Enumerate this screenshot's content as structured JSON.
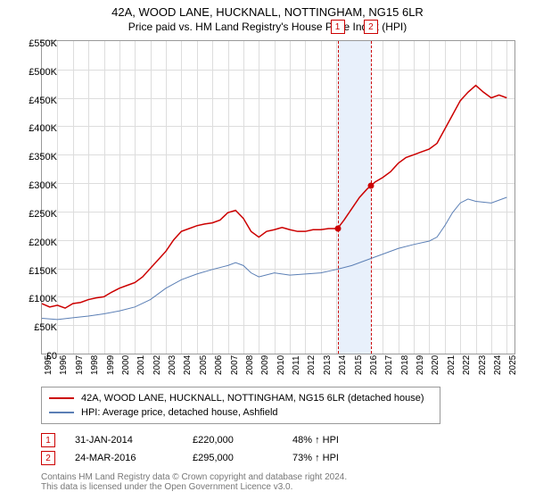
{
  "title_line1": "42A, WOOD LANE, HUCKNALL, NOTTINGHAM, NG15 6LR",
  "title_line2": "Price paid vs. HM Land Registry's House Price Index (HPI)",
  "chart": {
    "type": "line",
    "xlim": [
      1995,
      2025.5
    ],
    "ylim": [
      0,
      550
    ],
    "ytick_step": 50,
    "y_prefix": "£",
    "y_suffix": "K",
    "xticks": [
      1995,
      1996,
      1997,
      1998,
      1999,
      2000,
      2001,
      2002,
      2003,
      2004,
      2005,
      2006,
      2007,
      2008,
      2009,
      2010,
      2011,
      2012,
      2013,
      2014,
      2015,
      2016,
      2017,
      2018,
      2019,
      2020,
      2021,
      2022,
      2023,
      2024,
      2025
    ],
    "grid_color": "#ddd",
    "border_color": "#999",
    "bg_color": "#ffffff",
    "shade_color": "#e8f0fb",
    "shade_range": [
      2014.08,
      2016.23
    ],
    "series": [
      {
        "name": "42A, WOOD LANE, HUCKNALL, NOTTINGHAM, NG15 6LR (detached house)",
        "color": "#cc0000",
        "width": 1.5,
        "data": [
          [
            1995,
            88
          ],
          [
            1995.5,
            82
          ],
          [
            1996,
            85
          ],
          [
            1996.5,
            80
          ],
          [
            1997,
            88
          ],
          [
            1997.5,
            90
          ],
          [
            1998,
            95
          ],
          [
            1998.5,
            98
          ],
          [
            1999,
            100
          ],
          [
            1999.5,
            108
          ],
          [
            2000,
            115
          ],
          [
            2000.5,
            120
          ],
          [
            2001,
            125
          ],
          [
            2001.5,
            135
          ],
          [
            2002,
            150
          ],
          [
            2002.5,
            165
          ],
          [
            2003,
            180
          ],
          [
            2003.5,
            200
          ],
          [
            2004,
            215
          ],
          [
            2004.5,
            220
          ],
          [
            2005,
            225
          ],
          [
            2005.5,
            228
          ],
          [
            2006,
            230
          ],
          [
            2006.5,
            235
          ],
          [
            2007,
            248
          ],
          [
            2007.5,
            252
          ],
          [
            2008,
            238
          ],
          [
            2008.5,
            215
          ],
          [
            2009,
            205
          ],
          [
            2009.5,
            215
          ],
          [
            2010,
            218
          ],
          [
            2010.5,
            222
          ],
          [
            2011,
            218
          ],
          [
            2011.5,
            215
          ],
          [
            2012,
            215
          ],
          [
            2012.5,
            218
          ],
          [
            2013,
            218
          ],
          [
            2013.5,
            220
          ],
          [
            2014,
            220
          ],
          [
            2014.08,
            220
          ],
          [
            2014.5,
            235
          ],
          [
            2015,
            255
          ],
          [
            2015.5,
            275
          ],
          [
            2016,
            290
          ],
          [
            2016.23,
            295
          ],
          [
            2016.5,
            302
          ],
          [
            2017,
            310
          ],
          [
            2017.5,
            320
          ],
          [
            2018,
            335
          ],
          [
            2018.5,
            345
          ],
          [
            2019,
            350
          ],
          [
            2019.5,
            355
          ],
          [
            2020,
            360
          ],
          [
            2020.5,
            370
          ],
          [
            2021,
            395
          ],
          [
            2021.5,
            420
          ],
          [
            2022,
            445
          ],
          [
            2022.5,
            460
          ],
          [
            2023,
            472
          ],
          [
            2023.5,
            460
          ],
          [
            2024,
            450
          ],
          [
            2024.5,
            455
          ],
          [
            2025,
            450
          ]
        ]
      },
      {
        "name": "HPI: Average price, detached house, Ashfield",
        "color": "#5b7fb5",
        "width": 1,
        "data": [
          [
            1995,
            62
          ],
          [
            1996,
            60
          ],
          [
            1997,
            63
          ],
          [
            1998,
            66
          ],
          [
            1999,
            70
          ],
          [
            2000,
            75
          ],
          [
            2001,
            82
          ],
          [
            2002,
            95
          ],
          [
            2003,
            115
          ],
          [
            2004,
            130
          ],
          [
            2005,
            140
          ],
          [
            2006,
            148
          ],
          [
            2007,
            155
          ],
          [
            2007.5,
            160
          ],
          [
            2008,
            155
          ],
          [
            2008.5,
            142
          ],
          [
            2009,
            135
          ],
          [
            2010,
            142
          ],
          [
            2011,
            138
          ],
          [
            2012,
            140
          ],
          [
            2013,
            142
          ],
          [
            2014,
            148
          ],
          [
            2015,
            155
          ],
          [
            2016,
            165
          ],
          [
            2017,
            175
          ],
          [
            2018,
            185
          ],
          [
            2019,
            192
          ],
          [
            2020,
            198
          ],
          [
            2020.5,
            205
          ],
          [
            2021,
            225
          ],
          [
            2021.5,
            248
          ],
          [
            2022,
            265
          ],
          [
            2022.5,
            272
          ],
          [
            2023,
            268
          ],
          [
            2024,
            265
          ],
          [
            2025,
            275
          ]
        ]
      }
    ],
    "markers": [
      {
        "id": "1",
        "x": 2014.08,
        "y": 220
      },
      {
        "id": "2",
        "x": 2016.23,
        "y": 295
      }
    ]
  },
  "legend": [
    {
      "color": "#cc0000",
      "label": "42A, WOOD LANE, HUCKNALL, NOTTINGHAM, NG15 6LR (detached house)"
    },
    {
      "color": "#5b7fb5",
      "label": "HPI: Average price, detached house, Ashfield"
    }
  ],
  "table": [
    {
      "marker": "1",
      "color": "#cc0000",
      "date": "31-JAN-2014",
      "price": "£220,000",
      "delta": "48% ↑ HPI"
    },
    {
      "marker": "2",
      "color": "#cc0000",
      "date": "24-MAR-2016",
      "price": "£295,000",
      "delta": "73% ↑ HPI"
    }
  ],
  "footer_line1": "Contains HM Land Registry data © Crown copyright and database right 2024.",
  "footer_line2": "This data is licensed under the Open Government Licence v3.0."
}
